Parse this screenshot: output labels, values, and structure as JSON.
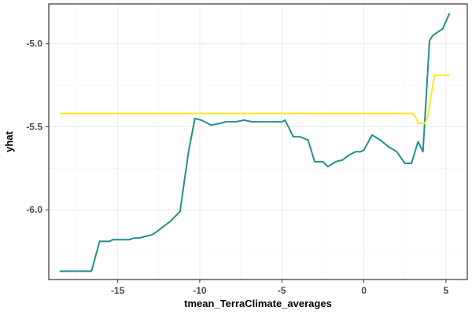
{
  "chart_data": {
    "type": "line",
    "title": "",
    "xlabel": "tmean_TerraClimate_averages",
    "ylabel": "yhat",
    "xlim": [
      -19.2,
      6.3
    ],
    "ylim": [
      -6.42,
      -4.76
    ],
    "x_ticks": [
      -15,
      -10,
      -5,
      0,
      5
    ],
    "x_tick_labels": [
      "-15",
      "-10",
      "-5",
      "0",
      "5"
    ],
    "y_ticks": [
      -6.0,
      -5.5,
      -5.0
    ],
    "y_tick_labels": [
      "-6.0",
      "-5.5",
      "-5.0"
    ],
    "grid": true,
    "legend": "none",
    "series": [
      {
        "color": "#21908C",
        "x": [
          -18.5,
          -16.6,
          -16.1,
          -15.5,
          -15.3,
          -14.7,
          -14.3,
          -14.0,
          -13.7,
          -13.3,
          -12.9,
          -12.6,
          -12.2,
          -11.8,
          -11.2,
          -10.7,
          -10.3,
          -9.9,
          -9.7,
          -9.3,
          -8.8,
          -8.4,
          -7.8,
          -7.3,
          -6.8,
          -6.2,
          -5.5,
          -5.0,
          -4.8,
          -4.3,
          -3.9,
          -3.4,
          -3.0,
          -2.5,
          -2.2,
          -1.7,
          -1.3,
          -0.9,
          -0.5,
          -0.2,
          0.0,
          0.5,
          1.0,
          1.5,
          2.0,
          2.5,
          2.9,
          3.3,
          3.6,
          4.0,
          4.2,
          4.5,
          4.8,
          5.2
        ],
        "y": [
          -6.37,
          -6.37,
          -6.19,
          -6.19,
          -6.18,
          -6.18,
          -6.18,
          -6.17,
          -6.17,
          -6.16,
          -6.15,
          -6.13,
          -6.1,
          -6.07,
          -6.01,
          -5.66,
          -5.45,
          -5.46,
          -5.47,
          -5.49,
          -5.48,
          -5.47,
          -5.47,
          -5.46,
          -5.47,
          -5.47,
          -5.47,
          -5.47,
          -5.46,
          -5.56,
          -5.56,
          -5.58,
          -5.71,
          -5.71,
          -5.74,
          -5.71,
          -5.7,
          -5.67,
          -5.65,
          -5.65,
          -5.64,
          -5.55,
          -5.58,
          -5.62,
          -5.65,
          -5.72,
          -5.72,
          -5.59,
          -5.65,
          -4.98,
          -4.95,
          -4.93,
          -4.91,
          -4.82
        ]
      },
      {
        "color": "#FDE725",
        "x": [
          -18.5,
          3.0,
          3.2,
          3.3,
          3.7,
          3.9,
          4.1,
          4.3,
          4.5,
          5.2
        ],
        "y": [
          -5.42,
          -5.42,
          -5.45,
          -5.48,
          -5.48,
          -5.44,
          -5.31,
          -5.19,
          -5.19,
          -5.19
        ]
      }
    ]
  }
}
